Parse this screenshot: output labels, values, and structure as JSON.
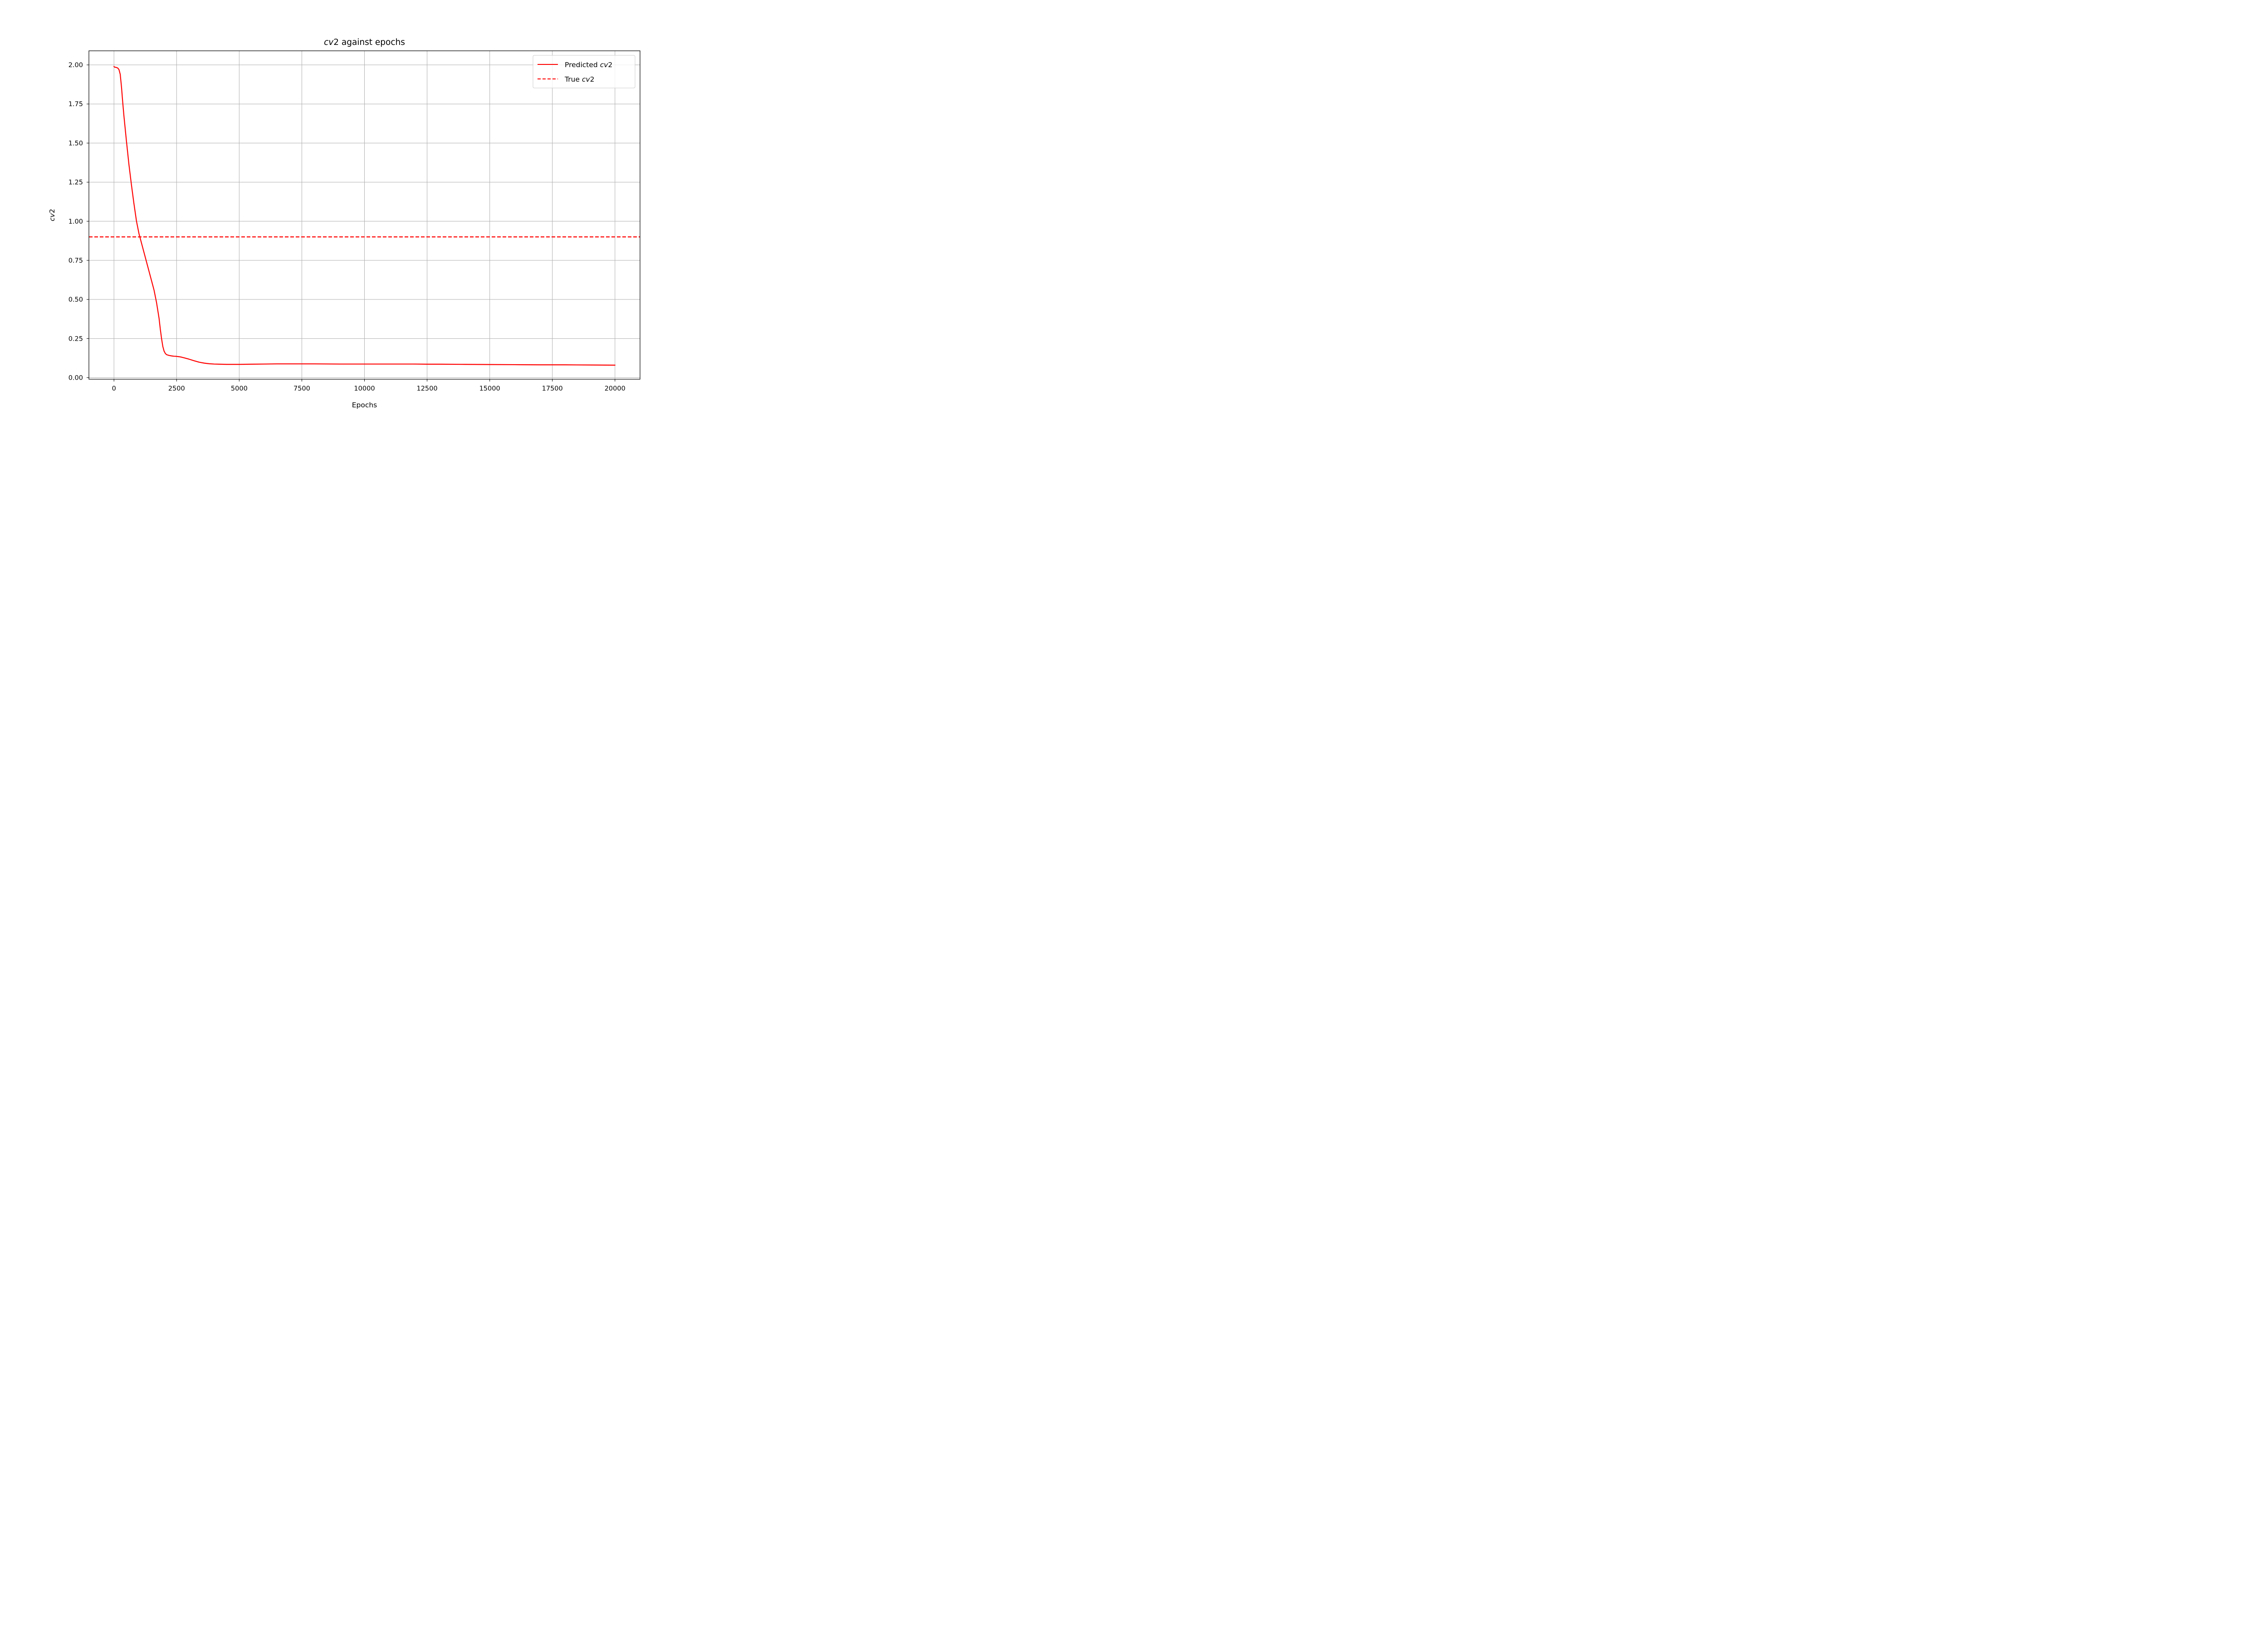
{
  "chart_data": {
    "type": "line",
    "title": "cv2 against epochs",
    "xlabel": "Epochs",
    "ylabel": "cv2",
    "xlim": [
      -1000,
      21000
    ],
    "ylim": [
      -0.01,
      2.09
    ],
    "x_ticks": [
      0,
      2500,
      5000,
      7500,
      10000,
      12500,
      15000,
      17500,
      20000
    ],
    "x_tick_labels": [
      "0",
      "2500",
      "5000",
      "7500",
      "10000",
      "12500",
      "15000",
      "17500",
      "20000"
    ],
    "y_ticks": [
      0.0,
      0.25,
      0.5,
      0.75,
      1.0,
      1.25,
      1.5,
      1.75,
      2.0
    ],
    "y_tick_labels": [
      "0.00",
      "0.25",
      "0.50",
      "0.75",
      "1.00",
      "1.25",
      "1.50",
      "1.75",
      "2.00"
    ],
    "grid": true,
    "legend_position": "upper right",
    "legend": [
      "Predicted cv2",
      "True cv2"
    ],
    "series": [
      {
        "name": "Predicted cv2",
        "style": "solid",
        "color": "#ff0000",
        "x": [
          0,
          30,
          60,
          100,
          150,
          200,
          250,
          300,
          350,
          400,
          500,
          600,
          700,
          800,
          900,
          1000,
          1100,
          1200,
          1300,
          1400,
          1500,
          1600,
          1700,
          1800,
          1850,
          1900,
          1950,
          2000,
          2050,
          2100,
          2200,
          2300,
          2400,
          2500,
          2600,
          2700,
          2800,
          3000,
          3200,
          3400,
          3600,
          3800,
          4000,
          4200,
          4500,
          5000,
          5500,
          6000,
          6500,
          7000,
          7500,
          8000,
          9000,
          10000,
          11000,
          12000,
          12500,
          13000,
          14000,
          15000,
          16000,
          17000,
          17500,
          18000,
          19000,
          20000
        ],
        "y": [
          1.99,
          1.985,
          1.985,
          1.983,
          1.98,
          1.97,
          1.94,
          1.86,
          1.76,
          1.67,
          1.51,
          1.36,
          1.23,
          1.11,
          1.0,
          0.92,
          0.86,
          0.8,
          0.74,
          0.68,
          0.62,
          0.56,
          0.48,
          0.38,
          0.31,
          0.25,
          0.2,
          0.17,
          0.155,
          0.147,
          0.142,
          0.139,
          0.137,
          0.136,
          0.134,
          0.131,
          0.127,
          0.118,
          0.108,
          0.099,
          0.093,
          0.089,
          0.087,
          0.086,
          0.085,
          0.085,
          0.086,
          0.087,
          0.088,
          0.088,
          0.088,
          0.088,
          0.087,
          0.087,
          0.087,
          0.087,
          0.086,
          0.086,
          0.085,
          0.084,
          0.083,
          0.082,
          0.082,
          0.082,
          0.081,
          0.08
        ]
      },
      {
        "name": "True cv2",
        "style": "dashed",
        "color": "#ff0000",
        "y_constant": 0.9
      }
    ]
  }
}
